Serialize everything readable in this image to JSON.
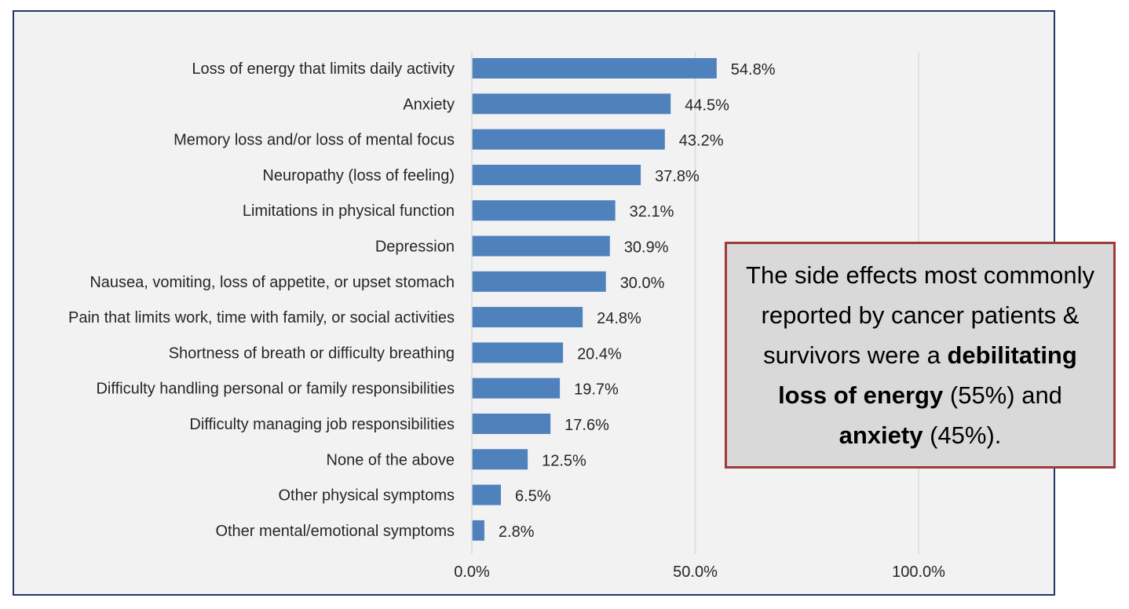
{
  "chart_data": {
    "type": "bar",
    "orientation": "horizontal",
    "categories": [
      "Loss of energy that limits daily activity",
      "Anxiety",
      "Memory loss and/or loss of mental focus",
      "Neuropathy (loss of feeling)",
      "Limitations in physical function",
      "Depression",
      "Nausea, vomiting, loss of appetite, or upset stomach",
      "Pain that limits work, time with family, or social activities",
      "Shortness of breath or difficulty breathing",
      "Difficulty handling personal or family responsibilities",
      "Difficulty managing job responsibilities",
      "None of the above",
      "Other physical symptoms",
      "Other mental/emotional symptoms"
    ],
    "values": [
      54.8,
      44.5,
      43.2,
      37.8,
      32.1,
      30.9,
      30.0,
      24.8,
      20.4,
      19.7,
      17.6,
      12.5,
      6.5,
      2.8
    ],
    "value_labels": [
      "54.8%",
      "44.5%",
      "43.2%",
      "37.8%",
      "32.1%",
      "30.9%",
      "30.0%",
      "24.8%",
      "20.4%",
      "19.7%",
      "17.6%",
      "12.5%",
      "6.5%",
      "2.8%"
    ],
    "xlim": [
      0,
      100
    ],
    "x_ticks": [
      0,
      50,
      100
    ],
    "x_tick_labels": [
      "0.0%",
      "50.0%",
      "100.0%"
    ],
    "grid": true,
    "bar_color": "#4f81bd",
    "title": "",
    "xlabel": "",
    "ylabel": ""
  },
  "callout": {
    "line1": "The side effects most commonly reported by cancer patients & survivors were a",
    "bold1": "debilitating loss of energy",
    "pct1": "(55%)",
    "and": "and",
    "bold2": "anxiety",
    "pct2": "(45%).",
    "border_color": "#9e3a3a",
    "background_color": "#d9d9d9"
  }
}
